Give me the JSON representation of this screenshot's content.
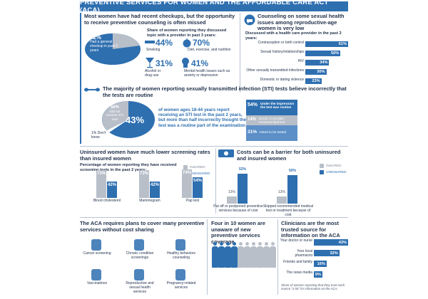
{
  "title": "PREVENTIVE SERVICES FOR WOMEN AND THE AFFORDABLE CARE ACT (ACA)",
  "panel1": {
    "heading": "Most women have had recent checkups, but the opportunity to receive preventive counseling is often missed",
    "pie_pct": "82%",
    "pie_label": "Had a general checkup in past 2 years",
    "pie_value": 82,
    "sub": "Share of women reporting they discussed topic with a provider in past 3 years:",
    "items": [
      {
        "pct": "44%",
        "label": "Smoking"
      },
      {
        "pct": "70%",
        "label": "Diet, exercise, and nutrition"
      },
      {
        "pct": "31%",
        "label": "Alcohol or drug use"
      },
      {
        "pct": "41%",
        "label": "Mental health issues such as anxiety or depression"
      }
    ]
  },
  "panel2": {
    "heading": "Counseling on some sexual health issues among reproductive-age women is very low",
    "sub": "Discussed with a health care provider in the past 3 years:",
    "bars": [
      {
        "label": "Contraception or birth control",
        "value": 61,
        "text": "61%"
      },
      {
        "label": "Sexual history/relationships",
        "value": 50,
        "text": "50%"
      },
      {
        "label": "HIV",
        "value": 34,
        "text": "34%"
      },
      {
        "label": "Other sexually transmitted infections",
        "value": 30,
        "text": "30%"
      },
      {
        "label": "Domestic or dating violence",
        "value": 23,
        "text": "23%"
      }
    ]
  },
  "panel3": {
    "heading": "The majority of women reporting sexually transmitted infection (STI) tests believe incorrectly that the tests are routine",
    "pie_big": "43%",
    "pie_small": "56%",
    "pie_small_label": "Did not receive STI test",
    "dont_know": "1% Don't know",
    "text": "of women ages 18-44 years report receiving an STI test in the past 2 years, but more than half incorrectly thought the test was a routine part of the examination",
    "stack": [
      {
        "pct": "54%",
        "label": "Under the impression the test was routine"
      },
      {
        "pct": "14%",
        "label": "Doctor or provider recommended test"
      },
      {
        "pct": "31%",
        "label": "Asked to be tested"
      }
    ]
  },
  "panel4": {
    "heading": "Uninsured women have much lower screening rates than insured women",
    "sub": "Percentage of women reporting they have received screening tests in the past 2 years:",
    "legend": [
      "INSURED",
      "UNINSURED"
    ],
    "groups": [
      {
        "label": "Blood cholesterol",
        "insured": 73,
        "uninsured": 42,
        "insured_text": "73%",
        "uninsured_text": "42%"
      },
      {
        "label": "Mammogram",
        "insured": 73,
        "uninsured": 42,
        "insured_text": "73%",
        "uninsured_text": "42%"
      },
      {
        "label": "Pap test",
        "insured": 74,
        "uninsured": 54,
        "insured_text": "74%",
        "uninsured_text": "54%"
      }
    ]
  },
  "panel5": {
    "heading": "Costs can be a barrier for both uninsured and insured women",
    "legend": [
      "INSURED",
      "UNINSURED"
    ],
    "groups": [
      {
        "label": "Put off or postponed preventive services because of cost",
        "insured": 13,
        "uninsured": 52,
        "insured_text": "13%",
        "uninsured_text": "52%"
      },
      {
        "label": "Skipped recommended medical test or treatment because of cost",
        "insured": 13,
        "uninsured": 50,
        "insured_text": "13%",
        "uninsured_text": "50%"
      }
    ]
  },
  "panel6": {
    "heading": "The ACA requires plans to cover many preventive services without cost sharing",
    "items": [
      "Cancer screening",
      "Chronic condition screenings",
      "Healthy behaviors counseling",
      "Vaccinations",
      "Reproductive and sexual health services",
      "Pregnancy-related services"
    ]
  },
  "panel7": {
    "heading": "Four in 10 women are unaware of new preventive services coverage"
  },
  "panel8": {
    "heading": "Clinicians are the most trusted source for information on the ACA",
    "bars": [
      {
        "label": "Your doctor or nurse",
        "value": 43,
        "text": "43%"
      },
      {
        "label": "Your local pharmacist",
        "value": 32,
        "text": "32%"
      },
      {
        "label": "Friends and family",
        "value": 16,
        "text": "16%"
      },
      {
        "label": "The news media",
        "value": 9,
        "text": "9%"
      }
    ],
    "note": "Share of women reporting that they trust each source \"a lot\" for information on the ACA."
  },
  "chart_data": [
    {
      "type": "pie",
      "title": "Had a general checkup in past 2 years",
      "values": [
        82,
        18
      ]
    },
    {
      "type": "bar",
      "title": "Discussed with a health care provider in the past 3 years:",
      "categories": [
        "Contraception or birth control",
        "Sexual history/relationships",
        "HIV",
        "Other sexually transmitted infections",
        "Domestic or dating violence"
      ],
      "values": [
        61,
        50,
        34,
        30,
        23
      ]
    },
    {
      "type": "pie",
      "categories": [
        "Received STI test",
        "Did not receive STI test",
        "Don't know"
      ],
      "values": [
        43,
        56,
        1
      ]
    },
    {
      "type": "bar",
      "categories": [
        "Blood cholesterol",
        "Mammogram",
        "Pap test"
      ],
      "series": [
        {
          "name": "INSURED",
          "values": [
            73,
            73,
            74
          ]
        },
        {
          "name": "UNINSURED",
          "values": [
            42,
            42,
            54
          ]
        }
      ]
    },
    {
      "type": "bar",
      "categories": [
        "Put off or postponed preventive services because of cost",
        "Skipped recommended medical test or treatment because of cost"
      ],
      "series": [
        {
          "name": "INSURED",
          "values": [
            13,
            13
          ]
        },
        {
          "name": "UNINSURED",
          "values": [
            52,
            50
          ]
        }
      ]
    },
    {
      "type": "bar",
      "categories": [
        "Your doctor or nurse",
        "Your local pharmacist",
        "Friends and family",
        "The news media"
      ],
      "values": [
        43,
        32,
        16,
        9
      ]
    }
  ],
  "colors": {
    "blue": "#2e6fb0",
    "gray": "#b8bfc9",
    "dark": "#1f2f4a"
  }
}
